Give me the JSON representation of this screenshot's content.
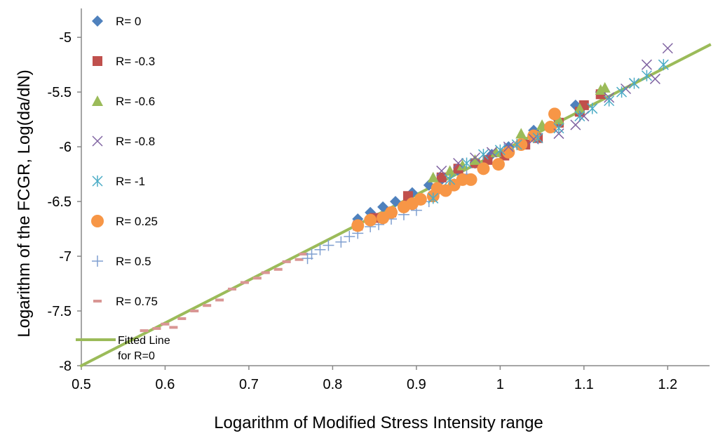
{
  "chart_data": {
    "type": "scatter",
    "xlabel": "Logarithm of Modified Stress Intensity range",
    "ylabel": "Logarithm of the FCGR,  Log(da/dN)",
    "xlim": [
      0.5,
      1.25
    ],
    "ylim": [
      -8,
      -4.8
    ],
    "x_ticks": [
      "0.5",
      "0.6",
      "0.7",
      "0.8",
      "0.9",
      "1",
      "1.1",
      "1.2"
    ],
    "y_ticks": [
      "-5",
      "-5.5",
      "-6",
      "-6.5",
      "-7",
      "-7.5",
      "-8"
    ],
    "grid": false,
    "legend_position": "left",
    "fitted_line": {
      "name_line1": "Fitted Line",
      "name_line2": "for R=0",
      "color": "#9BBB59",
      "points": [
        [
          0.5,
          -8.0
        ],
        [
          1.25,
          -5.07
        ]
      ]
    },
    "series": [
      {
        "name": "R= 0",
        "marker": "diamond",
        "color": "#4F81BD",
        "points": [
          [
            0.83,
            -6.66
          ],
          [
            0.845,
            -6.6
          ],
          [
            0.86,
            -6.55
          ],
          [
            0.875,
            -6.5
          ],
          [
            0.895,
            -6.42
          ],
          [
            0.915,
            -6.35
          ],
          [
            0.93,
            -6.3
          ],
          [
            0.95,
            -6.22
          ],
          [
            0.97,
            -6.15
          ],
          [
            0.99,
            -6.07
          ],
          [
            1.01,
            -6.0
          ],
          [
            1.04,
            -5.85
          ],
          [
            1.065,
            -5.72
          ],
          [
            1.09,
            -5.62
          ],
          [
            1.12,
            -5.5
          ]
        ]
      },
      {
        "name": "R= -0.3",
        "marker": "square",
        "color": "#C0504D",
        "points": [
          [
            0.83,
            -6.72
          ],
          [
            0.85,
            -6.65
          ],
          [
            0.87,
            -6.6
          ],
          [
            0.89,
            -6.45
          ],
          [
            0.93,
            -6.28
          ],
          [
            0.95,
            -6.2
          ],
          [
            0.97,
            -6.15
          ],
          [
            0.985,
            -6.12
          ],
          [
            1.005,
            -6.08
          ],
          [
            1.03,
            -5.98
          ],
          [
            1.045,
            -5.92
          ],
          [
            1.07,
            -5.78
          ],
          [
            1.095,
            -5.68
          ],
          [
            1.1,
            -5.62
          ],
          [
            1.12,
            -5.52
          ]
        ]
      },
      {
        "name": "R= -0.6",
        "marker": "triangle",
        "color": "#9BBB59",
        "points": [
          [
            0.92,
            -6.28
          ],
          [
            0.94,
            -6.22
          ],
          [
            0.955,
            -6.17
          ],
          [
            0.97,
            -6.12
          ],
          [
            0.995,
            -6.05
          ],
          [
            1.025,
            -5.88
          ],
          [
            1.05,
            -5.8
          ],
          [
            1.07,
            -5.75
          ],
          [
            1.095,
            -5.65
          ],
          [
            1.12,
            -5.48
          ],
          [
            1.125,
            -5.46
          ]
        ]
      },
      {
        "name": "R= -0.8",
        "marker": "x",
        "color": "#8064A2",
        "points": [
          [
            0.93,
            -6.22
          ],
          [
            0.95,
            -6.15
          ],
          [
            0.97,
            -6.1
          ],
          [
            0.99,
            -6.05
          ],
          [
            1.01,
            -6.0
          ],
          [
            1.04,
            -5.93
          ],
          [
            1.07,
            -5.88
          ],
          [
            1.09,
            -5.8
          ],
          [
            1.1,
            -5.72
          ],
          [
            1.13,
            -5.55
          ],
          [
            1.15,
            -5.47
          ],
          [
            1.16,
            -5.42
          ],
          [
            1.175,
            -5.25
          ],
          [
            1.185,
            -5.38
          ],
          [
            1.2,
            -5.1
          ]
        ]
      },
      {
        "name": "R= -1",
        "marker": "asterisk",
        "color": "#4BACC6",
        "points": [
          [
            0.92,
            -6.47
          ],
          [
            0.94,
            -6.3
          ],
          [
            0.96,
            -6.15
          ],
          [
            0.98,
            -6.07
          ],
          [
            1.0,
            -6.03
          ],
          [
            1.02,
            -5.98
          ],
          [
            1.045,
            -5.92
          ],
          [
            1.07,
            -5.83
          ],
          [
            1.095,
            -5.72
          ],
          [
            1.11,
            -5.65
          ],
          [
            1.13,
            -5.58
          ],
          [
            1.145,
            -5.5
          ],
          [
            1.16,
            -5.42
          ],
          [
            1.175,
            -5.35
          ],
          [
            1.195,
            -5.25
          ]
        ]
      },
      {
        "name": "R= 0.25",
        "marker": "circle",
        "color": "#F79646",
        "points": [
          [
            0.83,
            -6.72
          ],
          [
            0.845,
            -6.67
          ],
          [
            0.86,
            -6.65
          ],
          [
            0.87,
            -6.6
          ],
          [
            0.885,
            -6.55
          ],
          [
            0.895,
            -6.52
          ],
          [
            0.905,
            -6.48
          ],
          [
            0.92,
            -6.45
          ],
          [
            0.925,
            -6.38
          ],
          [
            0.935,
            -6.4
          ],
          [
            0.945,
            -6.35
          ],
          [
            0.955,
            -6.3
          ],
          [
            0.965,
            -6.3
          ],
          [
            0.98,
            -6.2
          ],
          [
            0.998,
            -6.16
          ],
          [
            1.01,
            -6.05
          ],
          [
            1.025,
            -5.98
          ],
          [
            1.04,
            -5.9
          ],
          [
            1.06,
            -5.82
          ],
          [
            1.065,
            -5.7
          ]
        ]
      },
      {
        "name": "R= 0.5",
        "marker": "plus",
        "color": "#7F9FD0",
        "points": [
          [
            0.77,
            -7.02
          ],
          [
            0.775,
            -6.98
          ],
          [
            0.785,
            -6.94
          ],
          [
            0.795,
            -6.9
          ],
          [
            0.81,
            -6.87
          ],
          [
            0.82,
            -6.82
          ],
          [
            0.83,
            -6.79
          ],
          [
            0.845,
            -6.73
          ],
          [
            0.855,
            -6.71
          ],
          [
            0.87,
            -6.66
          ],
          [
            0.885,
            -6.62
          ],
          [
            0.9,
            -6.58
          ],
          [
            0.915,
            -6.5
          ],
          [
            0.935,
            -6.4
          ],
          [
            0.945,
            -6.34
          ],
          [
            0.96,
            -6.25
          ],
          [
            0.975,
            -6.15
          ],
          [
            0.99,
            -6.08
          ],
          [
            1.005,
            -6.02
          ]
        ]
      },
      {
        "name": "R= 0.75",
        "marker": "dash",
        "color": "#D99694",
        "points": [
          [
            0.575,
            -7.68
          ],
          [
            0.59,
            -7.66
          ],
          [
            0.6,
            -7.62
          ],
          [
            0.61,
            -7.65
          ],
          [
            0.62,
            -7.57
          ],
          [
            0.635,
            -7.5
          ],
          [
            0.65,
            -7.45
          ],
          [
            0.665,
            -7.4
          ],
          [
            0.68,
            -7.3
          ],
          [
            0.695,
            -7.24
          ],
          [
            0.71,
            -7.2
          ],
          [
            0.72,
            -7.15
          ],
          [
            0.735,
            -7.12
          ],
          [
            0.745,
            -7.05
          ],
          [
            0.76,
            -7.03
          ],
          [
            0.765,
            -6.98
          ]
        ]
      }
    ]
  }
}
